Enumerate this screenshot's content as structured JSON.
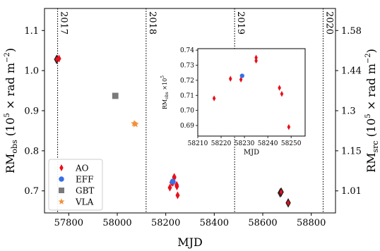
{
  "chart_data": [
    {
      "type": "scatter",
      "xlabel": "MJD",
      "ylabel": "RM_obs (10^5 × rad m^-2)",
      "ylabel_parts": {
        "main": "RM",
        "sub": "obs",
        "unit_open": " (10",
        "unit_exp": "5",
        "unit_mid": " × rad m",
        "unit_exp2": "−2",
        "unit_close": ")"
      },
      "ylabel_right": "RM_src (10^5 × rad m^-2)",
      "ylabel_right_parts": {
        "main": "RM",
        "sub": "src",
        "unit_open": " (10",
        "unit_exp": "5",
        "unit_mid": " × rad m",
        "unit_exp2": "−2",
        "unit_close": ")"
      },
      "xlim": [
        57700,
        58900
      ],
      "ylim": [
        0.645,
        1.155
      ],
      "xticks": [
        57800,
        58000,
        58200,
        58400,
        58600,
        58800
      ],
      "yticks": [
        0.7,
        0.8,
        0.9,
        1.0,
        1.1
      ],
      "right_yticks": [
        {
          "label": "1.01",
          "at": 0.7
        },
        {
          "label": "1.15",
          "at": 0.8
        },
        {
          "label": "1.3",
          "at": 0.9
        },
        {
          "label": "1.44",
          "at": 1.0
        },
        {
          "label": "1.58",
          "at": 1.1
        }
      ],
      "year_markers": [
        {
          "label": "2017",
          "mjd": 57754
        },
        {
          "label": "2018",
          "mjd": 58119
        },
        {
          "label": "2019",
          "mjd": 58484
        },
        {
          "label": "2020",
          "mjd": 58849
        }
      ],
      "legend": {
        "position": "lower-left",
        "entries": [
          "AO",
          "EFF",
          "GBT",
          "VLA"
        ]
      },
      "series": [
        {
          "name": "AO",
          "marker": "diamond",
          "color": "#e8101a",
          "points": [
            {
              "x": 57750,
              "y": 1.028,
              "outlined": true
            },
            {
              "x": 57760,
              "y": 1.03
            },
            {
              "x": 58217,
              "y": 0.708
            },
            {
              "x": 58224,
              "y": 0.721
            },
            {
              "x": 58229,
              "y": 0.72
            },
            {
              "x": 58235,
              "y": 0.733
            },
            {
              "x": 58235,
              "y": 0.735
            },
            {
              "x": 58245,
              "y": 0.715
            },
            {
              "x": 58246,
              "y": 0.711
            },
            {
              "x": 58249,
              "y": 0.689
            },
            {
              "x": 58672,
              "y": 0.695,
              "outlined": true
            },
            {
              "x": 58676,
              "y": 0.697,
              "outlined": true
            },
            {
              "x": 58705,
              "y": 0.67,
              "outlined": true
            }
          ]
        },
        {
          "name": "EFF",
          "marker": "circle",
          "color": "#3a6ee8",
          "points": [
            {
              "x": 58229,
              "y": 0.723
            }
          ]
        },
        {
          "name": "GBT",
          "marker": "square",
          "color": "#7a7a7a",
          "points": [
            {
              "x": 57992,
              "y": 0.937
            }
          ]
        },
        {
          "name": "VLA",
          "marker": "star",
          "color": "#f2903a",
          "points": [
            {
              "x": 58070,
              "y": 0.868
            },
            {
              "x": 58075,
              "y": 0.866
            }
          ]
        }
      ]
    },
    {
      "type": "scatter",
      "role": "inset",
      "xlabel": "MJD",
      "ylabel": "RM_obs ×10^5",
      "ylabel_parts": {
        "main": "RM",
        "sub": "obs",
        "times": " ×10",
        "exp": "5"
      },
      "xlim": [
        58210,
        58256
      ],
      "ylim": [
        0.683,
        0.741
      ],
      "xticks": [
        58210,
        58220,
        58230,
        58240,
        58250
      ],
      "yticks": [
        0.69,
        0.7,
        0.71,
        0.72,
        0.73,
        0.74
      ],
      "ytick_labels": [
        "0.69",
        "0.70",
        "0.71",
        "0.72",
        "0.73",
        "0.74"
      ],
      "series": [
        {
          "name": "AO",
          "marker": "diamond",
          "color": "#e8101a",
          "points": [
            {
              "x": 58217,
              "y": 0.708
            },
            {
              "x": 58224,
              "y": 0.721
            },
            {
              "x": 58228.5,
              "y": 0.7205
            },
            {
              "x": 58235,
              "y": 0.733
            },
            {
              "x": 58235,
              "y": 0.735
            },
            {
              "x": 58245,
              "y": 0.715
            },
            {
              "x": 58246,
              "y": 0.711
            },
            {
              "x": 58249,
              "y": 0.689
            }
          ]
        },
        {
          "name": "EFF",
          "marker": "circle",
          "color": "#3a6ee8",
          "points": [
            {
              "x": 58229,
              "y": 0.723
            }
          ]
        }
      ]
    }
  ]
}
